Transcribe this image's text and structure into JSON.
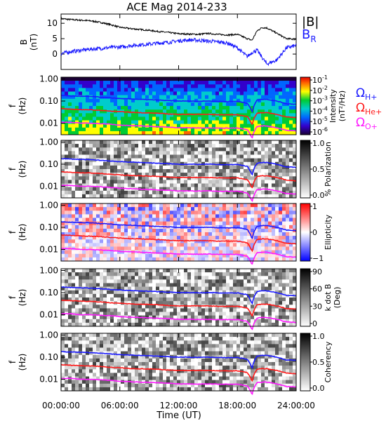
{
  "title": "ACE Mag 2014-233",
  "xlabel": "Time (UT)",
  "x_ticks": [
    "00:00:00",
    "06:00:00",
    "12:00:00",
    "18:00:00",
    "24:00:00"
  ],
  "panel_b": {
    "ylabel": "B",
    "yunit": "(nT)",
    "ylim": [
      -5,
      13
    ],
    "y_ticks": [
      "10",
      "5",
      "0"
    ],
    "legend_b": "|B|",
    "legend_br": "B",
    "legend_br_sub": "R",
    "color_b": "#000000",
    "color_br": "#1a1aff"
  },
  "spec_panels": [
    {
      "id": "intensity",
      "cb_ticks": [
        "10",
        "10",
        "10",
        "10",
        "10",
        "10"
      ],
      "cb_exp": [
        "-1",
        "-2",
        "-3",
        "-4",
        "-5",
        "-6"
      ],
      "cb_label": "Intensity",
      "cb_label2": "(nT²/Hz)",
      "cmap": "rainbow"
    },
    {
      "id": "polarization",
      "cb_ticks": [
        "1.0",
        "0.5",
        "0.0"
      ],
      "cb_label": "% Polarization",
      "cb_label2": "",
      "cmap": "gray"
    },
    {
      "id": "ellipticity",
      "cb_ticks": [
        "1",
        "0",
        "−1"
      ],
      "cb_label": "Ellipticity",
      "cb_label2": "",
      "cmap": "bwr"
    },
    {
      "id": "kdotb",
      "cb_ticks": [
        "90",
        "60",
        "30",
        "0"
      ],
      "cb_label": "k dot B",
      "cb_label2": "(Deg)",
      "cmap": "gray"
    },
    {
      "id": "coherency",
      "cb_ticks": [
        "1.0",
        "0.5",
        "0.0"
      ],
      "cb_label": "Coherency",
      "cb_label2": "",
      "cmap": "gray"
    }
  ],
  "spec_ylabel": "f",
  "spec_yunit": "(Hz)",
  "spec_y_ticks": [
    "1.00",
    "0.10",
    "0.01"
  ],
  "gyro_legend": [
    {
      "symbol": "Ω",
      "sub": "H+",
      "color": "#1a1aff"
    },
    {
      "symbol": "Ω",
      "sub": "He+",
      "color": "#ff1a1a"
    },
    {
      "symbol": "Ω",
      "sub": "O+",
      "color": "#ff1aff"
    }
  ],
  "chart_data": {
    "type": "line",
    "x_hours": [
      0,
      1,
      2,
      3,
      4,
      5,
      6,
      7,
      8,
      9,
      10,
      11,
      12,
      13,
      14,
      15,
      16,
      17,
      18,
      19,
      19.5,
      20,
      20.5,
      21,
      22,
      23,
      24
    ],
    "series": [
      {
        "name": "|B|",
        "values": [
          11.5,
          11.2,
          11.0,
          10.8,
          10.3,
          9.6,
          8.7,
          8.3,
          8.0,
          7.7,
          7.3,
          7.0,
          6.6,
          6.5,
          6.4,
          6.7,
          6.4,
          6.2,
          6.4,
          5.0,
          4.5,
          7.5,
          8.6,
          8.5,
          6.8,
          5.0,
          4.8
        ]
      },
      {
        "name": "B_R",
        "values": [
          0.2,
          0.8,
          1.2,
          1.6,
          1.8,
          2.1,
          2.3,
          2.7,
          3.0,
          3.2,
          3.6,
          3.8,
          4.3,
          4.6,
          4.5,
          4.2,
          4.0,
          3.6,
          2.0,
          -0.8,
          0.5,
          1.3,
          -1.0,
          -3.2,
          -2.0,
          2.0,
          2.8
        ]
      },
      {
        "name": "Omega_H+ (Hz)",
        "values": [
          0.18,
          0.17,
          0.165,
          0.16,
          0.15,
          0.14,
          0.13,
          0.125,
          0.12,
          0.115,
          0.11,
          0.105,
          0.1,
          0.1,
          0.098,
          0.1,
          0.097,
          0.095,
          0.097,
          0.08,
          0.03,
          0.11,
          0.12,
          0.12,
          0.1,
          0.075,
          0.072
        ]
      },
      {
        "name": "Omega_He+ (Hz)",
        "values": [
          0.045,
          0.043,
          0.041,
          0.04,
          0.038,
          0.035,
          0.033,
          0.031,
          0.03,
          0.029,
          0.028,
          0.026,
          0.025,
          0.025,
          0.025,
          0.025,
          0.024,
          0.024,
          0.024,
          0.02,
          0.008,
          0.028,
          0.03,
          0.03,
          0.025,
          0.019,
          0.018
        ]
      },
      {
        "name": "Omega_O+ (Hz)",
        "values": [
          0.011,
          0.011,
          0.01,
          0.01,
          0.0095,
          0.009,
          0.0082,
          0.0078,
          0.0075,
          0.0072,
          0.0069,
          0.0066,
          0.0062,
          0.0062,
          0.0061,
          0.0062,
          0.006,
          0.006,
          0.006,
          0.005,
          0.002,
          0.007,
          0.0075,
          0.0075,
          0.0062,
          0.0047,
          0.0045
        ]
      }
    ],
    "xlim": [
      0,
      24
    ],
    "flim": [
      0.003,
      1.2
    ]
  }
}
